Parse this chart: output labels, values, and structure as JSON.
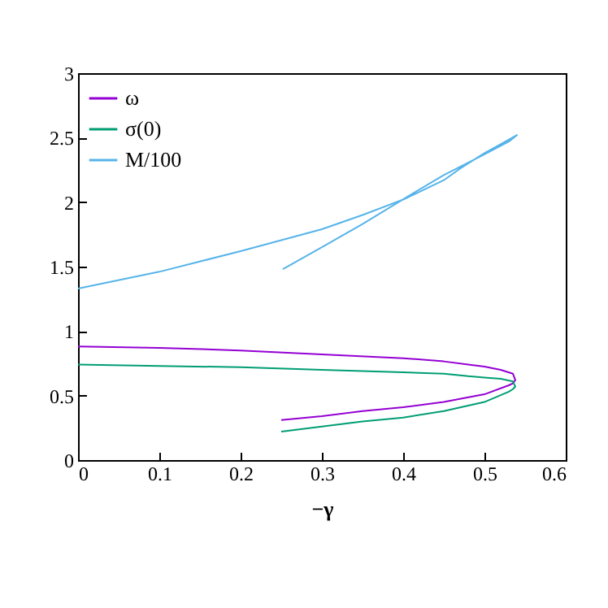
{
  "chart_data": {
    "type": "line",
    "xlabel": "−γ",
    "x": [
      0,
      0.1,
      0.2,
      0.3,
      0.4,
      0.45,
      0.48,
      0.5,
      0.52,
      0.535,
      0.538,
      0.535,
      0.53,
      0.5,
      0.45,
      0.4,
      0.35,
      0.3,
      0.25
    ],
    "series": [
      {
        "name": "ω",
        "color": "#9400d3",
        "values": [
          0.88,
          0.87,
          0.85,
          0.82,
          0.79,
          0.765,
          0.74,
          0.725,
          0.7,
          0.67,
          0.62,
          0.595,
          0.58,
          0.51,
          0.45,
          0.41,
          0.38,
          0.34,
          0.31
        ]
      },
      {
        "name": "σ(0)",
        "color": "#009e73",
        "values": [
          0.74,
          0.73,
          0.72,
          0.7,
          0.68,
          0.67,
          0.65,
          0.64,
          0.63,
          0.61,
          0.57,
          0.55,
          0.53,
          0.45,
          0.38,
          0.33,
          0.3,
          0.26,
          0.22
        ]
      },
      {
        "name": "M/100",
        "color": "#56b4e9",
        "x": [
          0,
          0.1,
          0.2,
          0.3,
          0.35,
          0.4,
          0.45,
          0.47,
          0.5,
          0.52,
          0.54,
          0.53,
          0.5,
          0.45,
          0.41,
          0.35,
          0.3,
          0.252
        ],
        "values": [
          1.33,
          1.46,
          1.62,
          1.79,
          1.9,
          2.02,
          2.17,
          2.26,
          2.38,
          2.45,
          2.52,
          2.47,
          2.37,
          2.21,
          2.06,
          1.83,
          1.65,
          1.48
        ]
      }
    ],
    "xlim": [
      0,
      0.6
    ],
    "xticks": [
      0,
      0.1,
      0.2,
      0.3,
      0.4,
      0.5,
      0.6
    ],
    "ylim": [
      0,
      3
    ],
    "yticks": [
      0,
      0.5,
      1,
      1.5,
      2,
      2.5,
      3
    ],
    "legend": "top left"
  }
}
